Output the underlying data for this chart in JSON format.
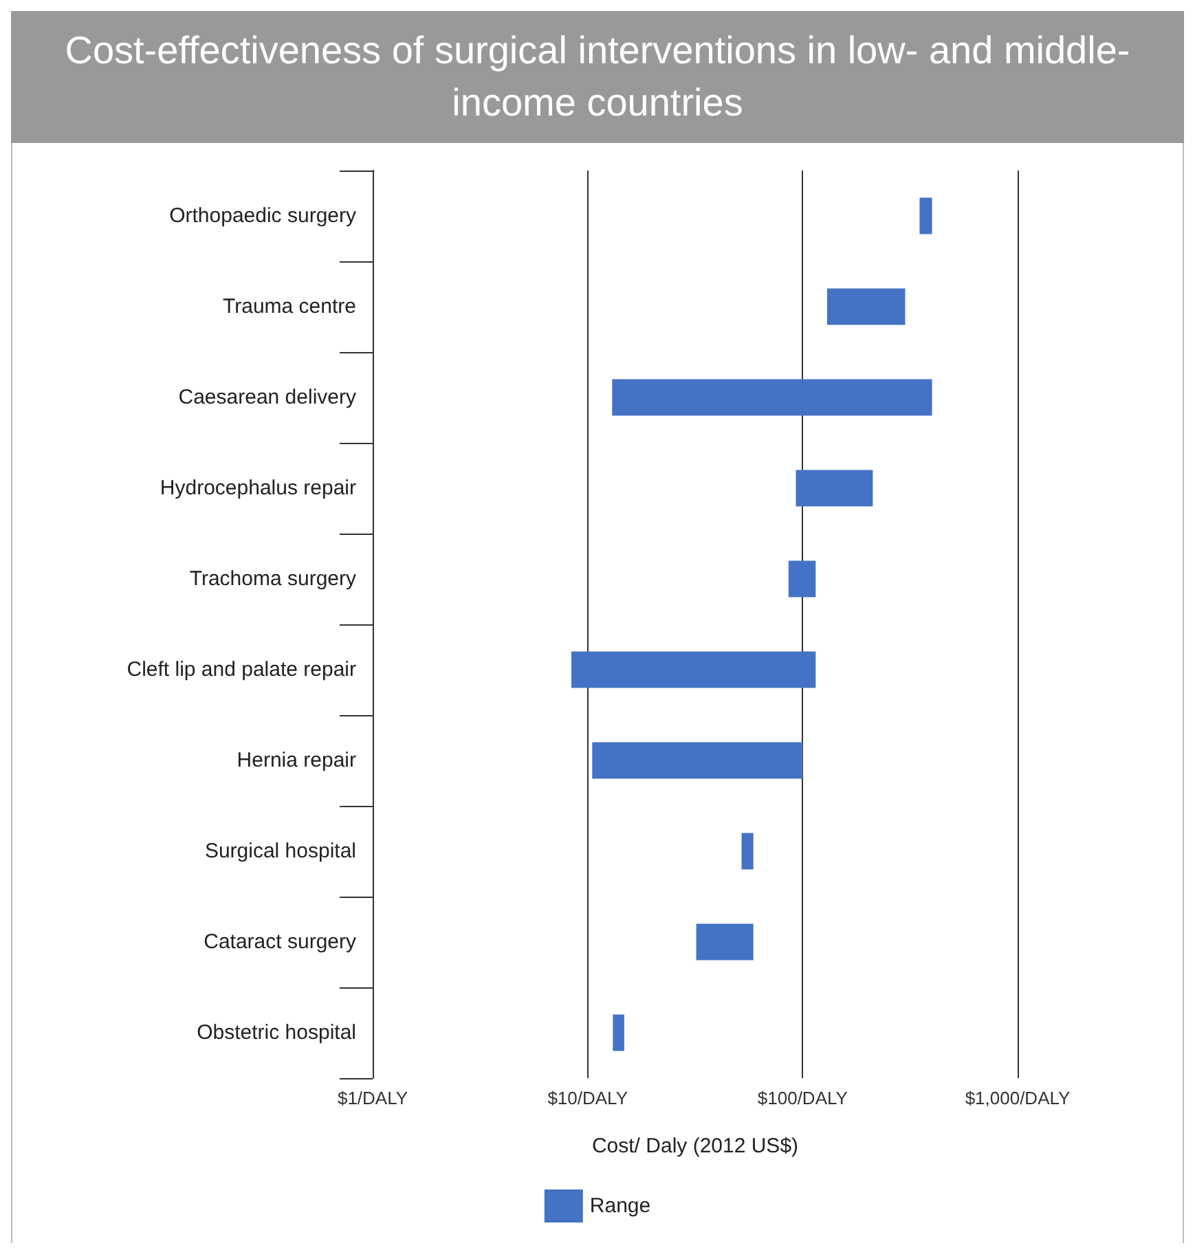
{
  "chart_data": {
    "type": "bar",
    "orientation": "horizontal",
    "title": "Cost-effectiveness of surgical interventions in low- and middle-income countries",
    "xlabel": "Cost/ Daly (2012 US$)",
    "categories": [
      "Orthopaedic surgery",
      "Trauma centre",
      "Caesarean delivery",
      "Hydrocephalus repair",
      "Trachoma surgery",
      "Cleft lip and palate repair",
      "Hernia repair",
      "Surgical hospital",
      "Cataract surgery",
      "Obstetric hospital"
    ],
    "series": [
      {
        "name": "Range",
        "color": "#4472c4",
        "base": [
          350,
          130,
          13,
          93,
          86,
          8.4,
          10.5,
          52,
          32,
          13.1
        ],
        "values": [
          50,
          170,
          387,
          119,
          29,
          106.6,
          89.5,
          7,
          27,
          1.7
        ]
      }
    ],
    "log": "x",
    "xlim": [
      1,
      1000
    ],
    "xticks": [
      {
        "value": 1,
        "label": "$1/DALY"
      },
      {
        "value": 10,
        "label": "$10/DALY"
      },
      {
        "value": 100,
        "label": "$100/DALY"
      },
      {
        "value": 1000,
        "label": "$1,000/DALY"
      }
    ],
    "grid": "x",
    "legend": "bottom"
  }
}
